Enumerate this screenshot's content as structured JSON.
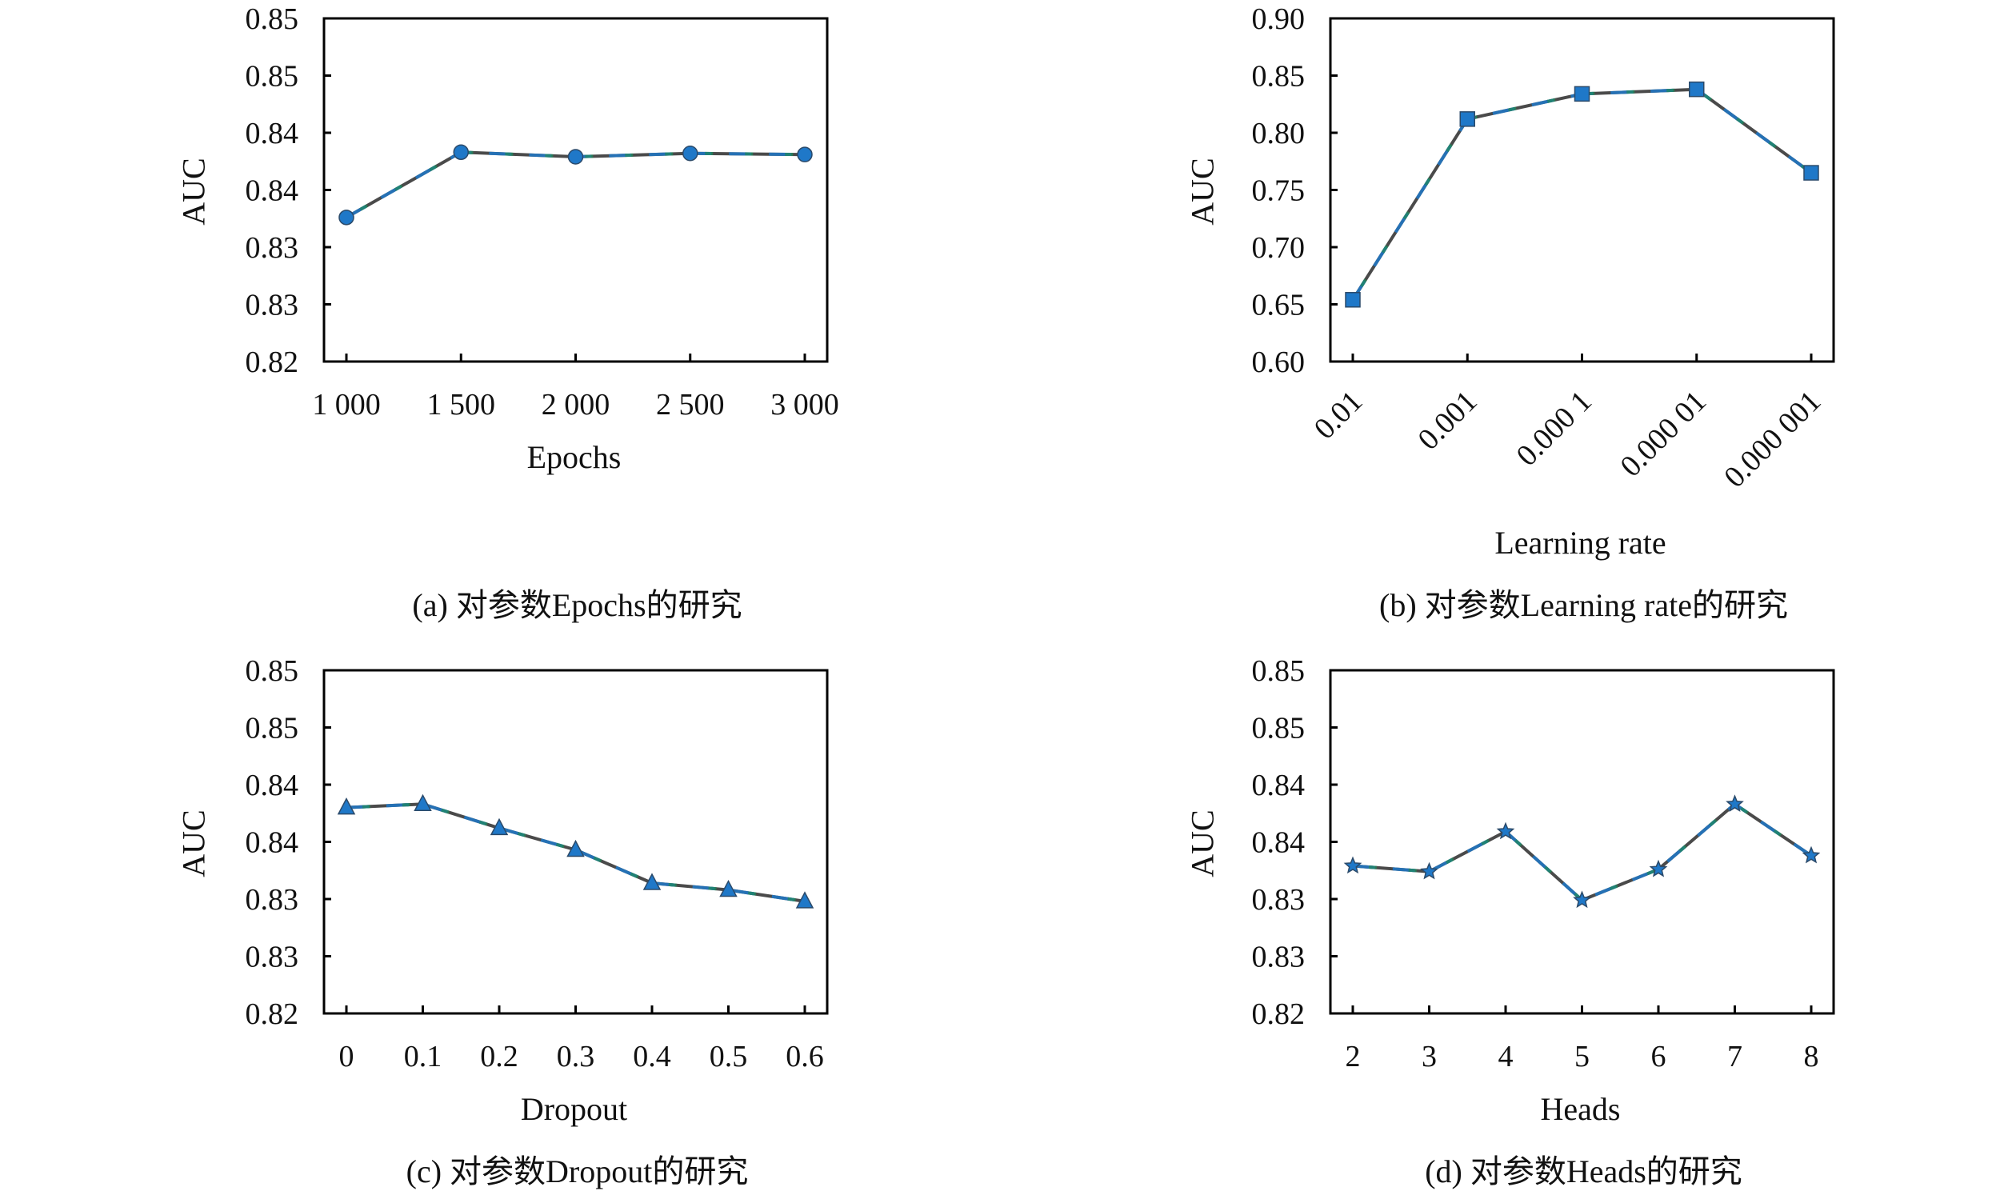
{
  "figure": {
    "colors": {
      "marker": "#1f78c8",
      "marker_edge": "#2b4a6a",
      "line": "#4a4a4a",
      "line_tint_blue": "#1f78c8",
      "line_tint_green": "#1e8a5a",
      "axis": "#000000",
      "text": "#111111"
    }
  },
  "chart_data": [
    {
      "id": "a",
      "type": "line",
      "marker": "circle",
      "title": "",
      "caption": "(a) 对参数Epochs的研究",
      "xlabel": "Epochs",
      "ylabel": "AUC",
      "categories": [
        "1 000",
        "1 500",
        "2 000",
        "2 500",
        "3 000"
      ],
      "x": [
        1000,
        1500,
        2000,
        2500,
        3000
      ],
      "series": [
        {
          "name": "AUC",
          "values": [
            0.8326,
            0.8383,
            0.8379,
            0.8382,
            0.8381
          ]
        }
      ],
      "ylim": [
        0.82,
        0.85
      ],
      "yticks": [
        0.82,
        0.825,
        0.83,
        0.835,
        0.84,
        0.845,
        0.85
      ],
      "ytick_labels": [
        "0.82",
        "0.83",
        "0.83",
        "0.84",
        "0.84",
        "0.85",
        "0.85"
      ],
      "grid": false,
      "legend": "none",
      "xtick_rotation": 0
    },
    {
      "id": "b",
      "type": "line",
      "marker": "square",
      "title": "",
      "caption": "(b) 对参数Learning rate的研究",
      "xlabel": "Learning rate",
      "ylabel": "AUC",
      "categories": [
        "0.01",
        "0.001",
        "0.000 1",
        "0.000 01",
        "0.000 001"
      ],
      "x": [
        0.01,
        0.001,
        0.0001,
        1e-05,
        1e-06
      ],
      "series": [
        {
          "name": "AUC",
          "values": [
            0.654,
            0.812,
            0.834,
            0.838,
            0.765
          ]
        }
      ],
      "ylim": [
        0.6,
        0.9
      ],
      "yticks": [
        0.6,
        0.65,
        0.7,
        0.75,
        0.8,
        0.85,
        0.9
      ],
      "ytick_labels": [
        "0.60",
        "0.65",
        "0.70",
        "0.75",
        "0.80",
        "0.85",
        "0.90"
      ],
      "grid": false,
      "legend": "none",
      "xtick_rotation": -45
    },
    {
      "id": "c",
      "type": "line",
      "marker": "triangle",
      "title": "",
      "caption": "(c) 对参数Dropout的研究",
      "xlabel": "Dropout",
      "ylabel": "AUC",
      "categories": [
        "0",
        "0.1",
        "0.2",
        "0.3",
        "0.4",
        "0.5",
        "0.6"
      ],
      "x": [
        0,
        0.1,
        0.2,
        0.3,
        0.4,
        0.5,
        0.6
      ],
      "series": [
        {
          "name": "AUC",
          "values": [
            0.838,
            0.8383,
            0.8362,
            0.8343,
            0.8314,
            0.8308,
            0.8298
          ]
        }
      ],
      "ylim": [
        0.82,
        0.85
      ],
      "yticks": [
        0.82,
        0.825,
        0.83,
        0.835,
        0.84,
        0.845,
        0.85
      ],
      "ytick_labels": [
        "0.82",
        "0.83",
        "0.83",
        "0.84",
        "0.84",
        "0.85",
        "0.85"
      ],
      "grid": false,
      "legend": "none",
      "xtick_rotation": 0
    },
    {
      "id": "d",
      "type": "line",
      "marker": "star",
      "title": "",
      "caption": "(d) 对参数Heads的研究",
      "xlabel": "Heads",
      "ylabel": "AUC",
      "categories": [
        "2",
        "3",
        "4",
        "5",
        "6",
        "7",
        "8"
      ],
      "x": [
        2,
        3,
        4,
        5,
        6,
        7,
        8
      ],
      "series": [
        {
          "name": "AUC",
          "values": [
            0.8329,
            0.8324,
            0.8359,
            0.8299,
            0.8326,
            0.8383,
            0.8338
          ]
        }
      ],
      "ylim": [
        0.82,
        0.85
      ],
      "yticks": [
        0.82,
        0.825,
        0.83,
        0.835,
        0.84,
        0.845,
        0.85
      ],
      "ytick_labels": [
        "0.82",
        "0.83",
        "0.83",
        "0.84",
        "0.84",
        "0.85",
        "0.85"
      ],
      "grid": false,
      "legend": "none",
      "xtick_rotation": 0
    }
  ]
}
